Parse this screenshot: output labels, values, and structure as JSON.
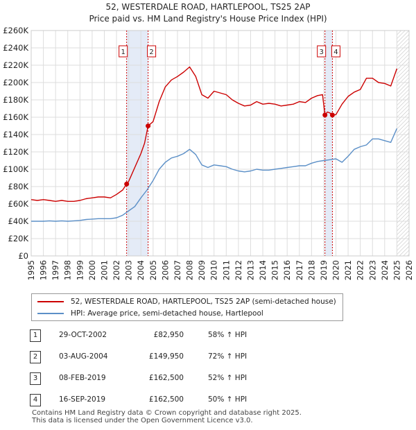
{
  "title_line1": "52, WESTERDALE ROAD, HARTLEPOOL, TS25 2AP",
  "title_line2": "Price paid vs. HM Land Registry's House Price Index (HPI)",
  "chart_data": {
    "type": "line",
    "xlim": [
      1995,
      2026
    ],
    "ylim": [
      0,
      260000
    ],
    "y_ticks": [
      0,
      20000,
      40000,
      60000,
      80000,
      100000,
      120000,
      140000,
      160000,
      180000,
      200000,
      220000,
      240000,
      260000
    ],
    "y_tick_labels": [
      "£0",
      "£20K",
      "£40K",
      "£60K",
      "£80K",
      "£100K",
      "£120K",
      "£140K",
      "£160K",
      "£180K",
      "£200K",
      "£220K",
      "£240K",
      "£260K"
    ],
    "x_ticks": [
      1995,
      1996,
      1997,
      1998,
      1999,
      2000,
      2001,
      2002,
      2003,
      2004,
      2005,
      2006,
      2007,
      2008,
      2009,
      2010,
      2011,
      2012,
      2013,
      2014,
      2015,
      2016,
      2017,
      2018,
      2019,
      2020,
      2021,
      2022,
      2023,
      2024,
      2025,
      2026
    ],
    "x_tick_labels": [
      "1995",
      "1996",
      "1997",
      "1998",
      "1999",
      "2000",
      "2001",
      "2002",
      "2003",
      "2004",
      "2005",
      "2006",
      "2007",
      "2008",
      "2009",
      "2010",
      "2011",
      "2012",
      "2013",
      "2014",
      "2015",
      "2016",
      "2017",
      "2018",
      "2019",
      "2020",
      "2021",
      "2022",
      "2023",
      "2024",
      "2025",
      "2026"
    ],
    "grid": true,
    "projection_start": 2025.0,
    "series": [
      {
        "name": "52, WESTERDALE ROAD, HARTLEPOOL, TS25 2AP (semi-detached house)",
        "color": "#cc0000",
        "x": [
          1995.0,
          1995.5,
          1996.0,
          1996.5,
          1997.0,
          1997.5,
          1998.0,
          1998.5,
          1999.0,
          1999.5,
          2000.0,
          2000.5,
          2001.0,
          2001.5,
          2002.0,
          2002.5,
          2002.83,
          2003.0,
          2003.5,
          2004.0,
          2004.3,
          2004.59,
          2005.0,
          2005.5,
          2006.0,
          2006.5,
          2007.0,
          2007.5,
          2008.0,
          2008.5,
          2009.0,
          2009.5,
          2010.0,
          2010.5,
          2011.0,
          2011.5,
          2012.0,
          2012.5,
          2013.0,
          2013.5,
          2014.0,
          2014.5,
          2015.0,
          2015.5,
          2016.0,
          2016.5,
          2017.0,
          2017.5,
          2018.0,
          2018.5,
          2018.9,
          2019.1,
          2019.3,
          2019.5,
          2019.71,
          2020.0,
          2020.5,
          2021.0,
          2021.5,
          2022.0,
          2022.5,
          2023.0,
          2023.5,
          2024.0,
          2024.5,
          2025.0
        ],
        "values": [
          65000,
          64000,
          65000,
          64000,
          63000,
          64000,
          63000,
          63000,
          64000,
          66000,
          67000,
          68000,
          68000,
          67000,
          71000,
          76000,
          82950,
          86000,
          102000,
          118000,
          130000,
          149950,
          155000,
          178000,
          195000,
          203000,
          207000,
          212000,
          218000,
          207000,
          186000,
          182000,
          190000,
          188000,
          186000,
          180000,
          176000,
          173000,
          174000,
          178000,
          175000,
          176000,
          175000,
          173000,
          174000,
          175000,
          178000,
          177000,
          182000,
          185000,
          186000,
          162500,
          166000,
          165000,
          162500,
          163000,
          175000,
          184000,
          189000,
          192000,
          205000,
          205000,
          200000,
          199000,
          196000,
          216000
        ]
      },
      {
        "name": "HPI: Average price, semi-detached house, Hartlepool",
        "color": "#5b8fc7",
        "x": [
          1995.0,
          1995.5,
          1996.0,
          1996.5,
          1997.0,
          1997.5,
          1998.0,
          1998.5,
          1999.0,
          1999.5,
          2000.0,
          2000.5,
          2001.0,
          2001.5,
          2002.0,
          2002.5,
          2003.0,
          2003.5,
          2004.0,
          2004.5,
          2005.0,
          2005.5,
          2006.0,
          2006.5,
          2007.0,
          2007.5,
          2008.0,
          2008.5,
          2009.0,
          2009.5,
          2010.0,
          2010.5,
          2011.0,
          2011.5,
          2012.0,
          2012.5,
          2013.0,
          2013.5,
          2014.0,
          2014.5,
          2015.0,
          2015.5,
          2016.0,
          2016.5,
          2017.0,
          2017.5,
          2018.0,
          2018.5,
          2019.0,
          2019.5,
          2020.0,
          2020.5,
          2021.0,
          2021.5,
          2022.0,
          2022.5,
          2023.0,
          2023.5,
          2024.0,
          2024.5,
          2025.0
        ],
        "values": [
          40000,
          40000,
          40000,
          40500,
          40000,
          40500,
          40000,
          40500,
          41000,
          42000,
          42500,
          43000,
          43000,
          43000,
          44000,
          47000,
          52000,
          57000,
          67000,
          76000,
          87000,
          100000,
          108000,
          113000,
          115000,
          118000,
          123000,
          117000,
          105000,
          102000,
          105000,
          104000,
          103000,
          100000,
          98000,
          97000,
          98000,
          100000,
          99000,
          99000,
          100000,
          101000,
          102000,
          103000,
          104000,
          104000,
          107000,
          109000,
          110000,
          111000,
          112000,
          108000,
          115000,
          123000,
          126000,
          128000,
          135000,
          135000,
          133000,
          131000,
          147000
        ]
      }
    ],
    "sales": [
      {
        "id": "1",
        "x": 2002.83,
        "value": 82950
      },
      {
        "id": "2",
        "x": 2004.59,
        "value": 149950
      },
      {
        "id": "3",
        "x": 2019.1,
        "value": 162500
      },
      {
        "id": "4",
        "x": 2019.71,
        "value": 162500
      }
    ]
  },
  "legend": {
    "red_label": "52, WESTERDALE ROAD, HARTLEPOOL, TS25 2AP (semi-detached house)",
    "blue_label": "HPI: Average price, semi-detached house, Hartlepool"
  },
  "sales_table": [
    {
      "num": "1",
      "date": "29-OCT-2002",
      "price": "£82,950",
      "hpi": "58% ↑ HPI"
    },
    {
      "num": "2",
      "date": "03-AUG-2004",
      "price": "£149,950",
      "hpi": "72% ↑ HPI"
    },
    {
      "num": "3",
      "date": "08-FEB-2019",
      "price": "£162,500",
      "hpi": "52% ↑ HPI"
    },
    {
      "num": "4",
      "date": "16-SEP-2019",
      "price": "£162,500",
      "hpi": "50% ↑ HPI"
    }
  ],
  "footer_line1": "Contains HM Land Registry data © Crown copyright and database right 2025.",
  "footer_line2": "This data is licensed under the Open Government Licence v3.0.",
  "colors": {
    "red": "#cc0000",
    "blue": "#5b8fc7",
    "shade": "#dde6f5",
    "grid": "#dddddd"
  }
}
